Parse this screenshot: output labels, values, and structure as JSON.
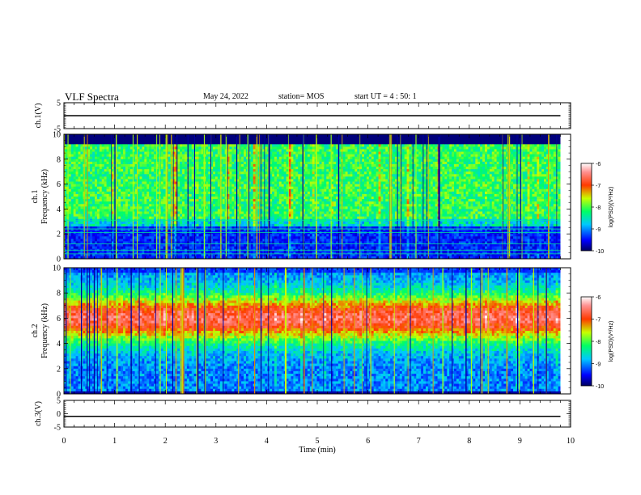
{
  "header": {
    "title": "VLF Spectra",
    "date": "May 24, 2022",
    "station": "station= MOS",
    "start_ut": "start UT =  4 : 50: 1"
  },
  "colorbar": {
    "label": "log(PSD)(V²/Hz)",
    "ticks": [
      "-6",
      "-7",
      "-8",
      "-9",
      "-10"
    ]
  },
  "chart_data": [
    {
      "type": "line",
      "ylabel": "ch.1(V)",
      "ylim": [
        -5,
        5
      ],
      "yticks": [
        "5",
        "-5"
      ],
      "x": [
        0,
        9.8
      ],
      "y": [
        0,
        0
      ],
      "xlim": [
        0,
        10
      ]
    },
    {
      "type": "heatmap",
      "ylabel": "ch.1\nFrequency (kHz)",
      "ylim": [
        0,
        10
      ],
      "yticks": [
        "0",
        "2",
        "4",
        "6",
        "8",
        "10"
      ],
      "xlim": [
        0,
        10
      ],
      "data_end_min": 9.8,
      "color_scale": [
        -10,
        -6
      ],
      "description_levels": {
        "low_band_0_2kHz": -9.5,
        "mid_band_2_9kHz": -8.3,
        "above_9kHz": -10
      }
    },
    {
      "type": "heatmap",
      "ylabel": "ch.2\nFrequency (kHz)",
      "ylim": [
        0,
        10
      ],
      "yticks": [
        "0",
        "2",
        "4",
        "6",
        "8",
        "10"
      ],
      "xlim": [
        0,
        10
      ],
      "data_end_min": 9.8,
      "color_scale": [
        -10,
        -6
      ],
      "description_levels": {
        "peak_band_5_7kHz": -6.8,
        "edges_0_2kHz": -9.2
      }
    },
    {
      "type": "line",
      "ylabel": "ch.3(V)",
      "ylim": [
        -5,
        5
      ],
      "yticks": [
        "5",
        "0",
        "-5"
      ],
      "x": [
        0,
        9.8
      ],
      "y": [
        -1,
        -1
      ],
      "xlim": [
        0,
        10
      ],
      "xlabel": "Time (min)",
      "xticks": [
        "0",
        "1",
        "2",
        "3",
        "4",
        "5",
        "6",
        "7",
        "8",
        "9",
        "10"
      ]
    }
  ]
}
